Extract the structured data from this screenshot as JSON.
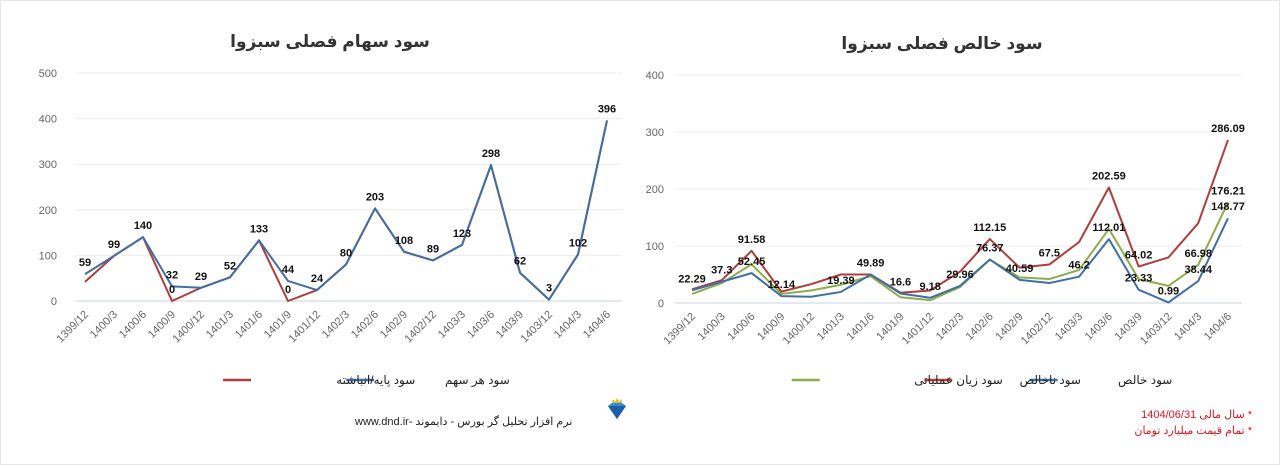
{
  "chart_data": [
    {
      "type": "line",
      "title": "سود سهام فصلی سبزوا",
      "categories": [
        "1399/12",
        "1400/3",
        "1400/6",
        "1400/9",
        "1400/12",
        "1401/3",
        "1401/6",
        "1401/9",
        "1401/12",
        "1402/3",
        "1402/6",
        "1402/9",
        "1402/12",
        "1403/3",
        "1403/6",
        "1403/9",
        "1403/12",
        "1404/3",
        "1404/6"
      ],
      "ylim": [
        0,
        500
      ],
      "yticks": [
        0,
        100,
        200,
        300,
        400,
        500
      ],
      "grid": true,
      "legend_position": "bottom",
      "series": [
        {
          "name": "سود هر سهم",
          "color": "#3f6fa5",
          "values": [
            59,
            99,
            140,
            32,
            29,
            52,
            133,
            44,
            24,
            80,
            203,
            108,
            89,
            123,
            298,
            62,
            3,
            102,
            396
          ],
          "labels": [
            "59",
            "99",
            "140",
            "32",
            "29",
            "52",
            "133",
            "44",
            "24",
            "80",
            "203",
            "108",
            "89",
            "123",
            "298",
            "62",
            "3",
            "102",
            "396"
          ]
        },
        {
          "name": "سود پایه/انباشته",
          "color": "#b03c3c",
          "values": [
            42,
            99,
            140,
            0,
            29,
            52,
            133,
            0,
            24,
            80,
            203,
            108,
            89,
            123,
            298,
            62,
            3,
            102,
            396
          ],
          "labels": [
            null,
            null,
            null,
            "0",
            null,
            null,
            null,
            "0",
            null,
            null,
            null,
            null,
            null,
            null,
            null,
            null,
            null,
            null,
            null
          ]
        }
      ]
    },
    {
      "type": "line",
      "title": "سود خالص فصلی سبزوا",
      "categories": [
        "1399/12",
        "1400/3",
        "1400/6",
        "1400/9",
        "1400/12",
        "1401/3",
        "1401/6",
        "1401/9",
        "1401/12",
        "1402/3",
        "1402/6",
        "1402/9",
        "1402/12",
        "1403/3",
        "1403/6",
        "1403/9",
        "1403/12",
        "1404/3",
        "1404/6"
      ],
      "ylim": [
        0,
        400
      ],
      "yticks": [
        0,
        100,
        200,
        300,
        400
      ],
      "grid": true,
      "legend_position": "bottom",
      "series": [
        {
          "name": "سود خالص",
          "color": "#3f6fa5",
          "values": [
            22.29,
            37.3,
            52.45,
            12.14,
            11,
            19.39,
            49.89,
            16.6,
            9.18,
            29.96,
            76.37,
            40.59,
            35,
            46.2,
            112.01,
            23.33,
            0.99,
            38.44,
            148.77
          ],
          "labels": [
            "22.29",
            "37.3",
            "52.45",
            "12.14",
            null,
            "19.39",
            "49.89",
            "16.6",
            "9.18",
            "29.96",
            "76.37",
            "40.59",
            null,
            "46.2",
            "112.01",
            "23.33",
            "0.99",
            "38.44",
            "148.77"
          ]
        },
        {
          "name": "سود ناخالص",
          "color": "#b03c3c",
          "values": [
            24,
            40,
            91.58,
            20,
            33,
            50,
            50,
            18,
            22,
            55,
            112.15,
            62,
            67.5,
            107,
            202.59,
            64.02,
            80,
            140,
            286.09
          ],
          "labels": [
            null,
            null,
            "91.58",
            null,
            null,
            null,
            null,
            null,
            null,
            null,
            "112.15",
            null,
            "67.5",
            null,
            "202.59",
            "64.02",
            null,
            null,
            "286.09"
          ]
        },
        {
          "name": "سود زیان عملیاتی",
          "color": "#8cad4a",
          "values": [
            16,
            35,
            68,
            16,
            22,
            32,
            47,
            10,
            5,
            28,
            76,
            45,
            42,
            58,
            130,
            42,
            30,
            66.98,
            176.21
          ],
          "labels": [
            null,
            null,
            null,
            null,
            null,
            null,
            null,
            null,
            null,
            null,
            null,
            null,
            null,
            null,
            null,
            null,
            null,
            "66.98",
            "176.21"
          ]
        }
      ]
    }
  ],
  "footer": {
    "software": "نرم افزار تحلیل گر بورس - دایموند -www.dnd.ir",
    "logo_icon": "diamond-icon",
    "notes": [
      "* سال مالی 1404/06/31",
      "* تمام قیمت میلیارد تومان"
    ]
  }
}
